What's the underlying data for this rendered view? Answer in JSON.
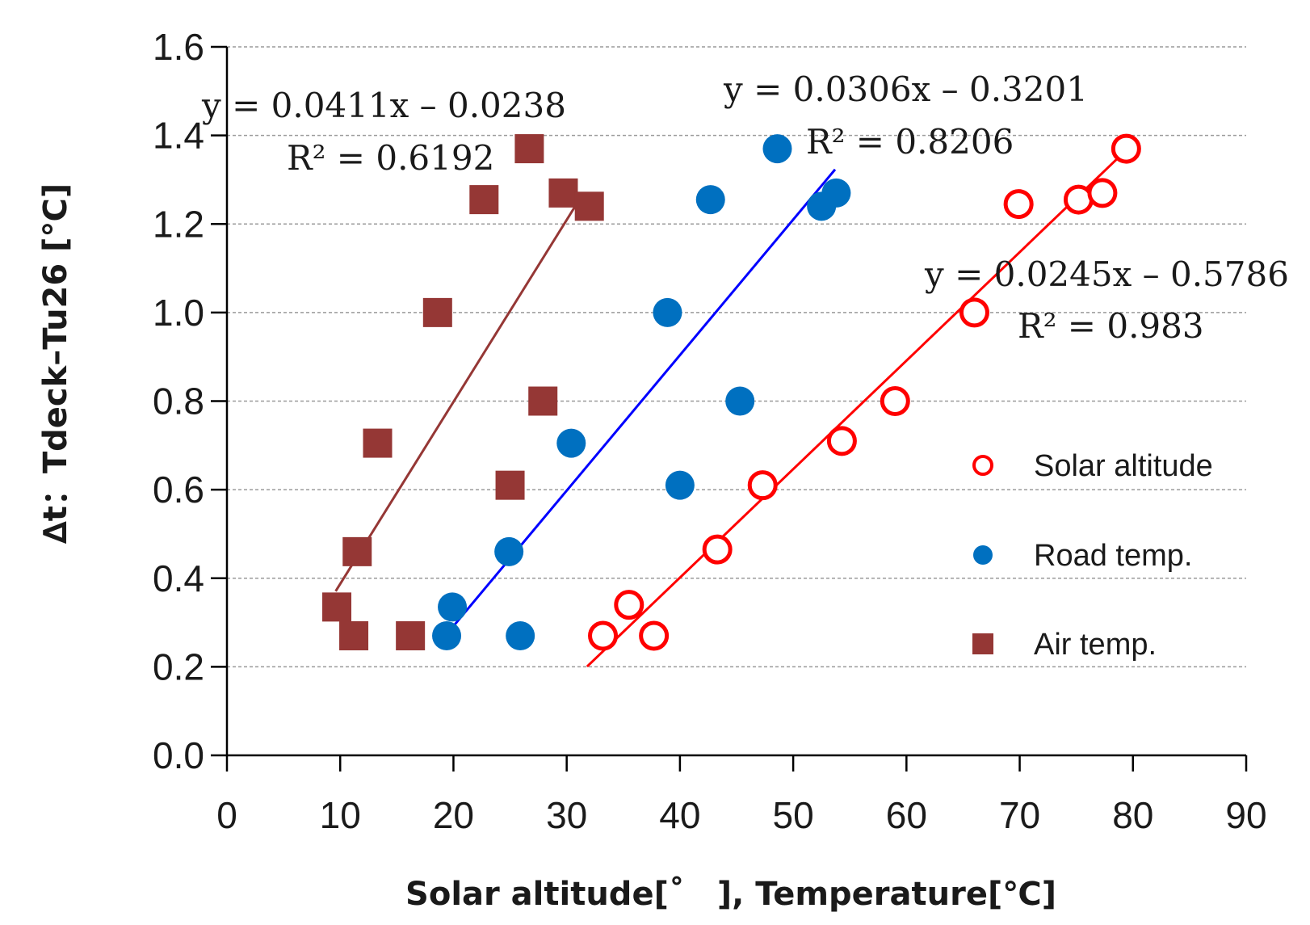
{
  "chart_data": {
    "type": "scatter",
    "title": "",
    "xlabel": "Solar altitude[˚　], Temperature[℃]",
    "ylabel": "∆t：Tdeck–Tu26 [℃]",
    "xlim": [
      0,
      90
    ],
    "ylim": [
      0.0,
      1.6
    ],
    "xticks": [
      0,
      10,
      20,
      30,
      40,
      50,
      60,
      70,
      80,
      90
    ],
    "yticks": [
      "0.0",
      "0.2",
      "0.4",
      "0.6",
      "0.8",
      "1.0",
      "1.2",
      "1.4",
      "1.6"
    ],
    "grid": "horizontal dashed",
    "legend_position": "right",
    "series": [
      {
        "name": "Solar altitude",
        "marker": "open-circle",
        "color": "#ff0000",
        "points": [
          [
            33.2,
            0.27
          ],
          [
            37.7,
            0.27
          ],
          [
            35.5,
            0.34
          ],
          [
            43.3,
            0.465
          ],
          [
            47.3,
            0.61
          ],
          [
            54.3,
            0.71
          ],
          [
            59.0,
            0.8
          ],
          [
            66.0,
            1.0
          ],
          [
            69.9,
            1.245
          ],
          [
            75.2,
            1.255
          ],
          [
            77.3,
            1.27
          ],
          [
            79.4,
            1.37
          ]
        ],
        "fit": {
          "slope": 0.0245,
          "intercept": -0.5786,
          "x_range": [
            31.8,
            79.5
          ],
          "equation": "y = 0.0245x – 0.5786",
          "r2": "R² = 0.983"
        }
      },
      {
        "name": "Road temp.",
        "marker": "filled-circle",
        "color": "#0070c0",
        "points": [
          [
            19.4,
            0.27
          ],
          [
            25.9,
            0.27
          ],
          [
            19.9,
            0.335
          ],
          [
            24.9,
            0.46
          ],
          [
            30.4,
            0.705
          ],
          [
            40.0,
            0.61
          ],
          [
            38.9,
            1.0
          ],
          [
            45.3,
            0.8
          ],
          [
            42.7,
            1.255
          ],
          [
            48.6,
            1.37
          ],
          [
            52.5,
            1.24
          ],
          [
            53.8,
            1.27
          ]
        ],
        "fit": {
          "slope": 0.0306,
          "intercept": -0.3201,
          "x_range": [
            19.3,
            53.7
          ],
          "equation": "y = 0.0306x – 0.3201",
          "r2": "R² = 0.8206"
        }
      },
      {
        "name": "Air temp.",
        "marker": "filled-square",
        "color": "#953735",
        "points": [
          [
            9.7,
            0.335
          ],
          [
            11.2,
            0.27
          ],
          [
            16.2,
            0.27
          ],
          [
            11.5,
            0.46
          ],
          [
            13.3,
            0.705
          ],
          [
            25.0,
            0.61
          ],
          [
            27.9,
            0.8
          ],
          [
            18.6,
            1.0
          ],
          [
            22.7,
            1.255
          ],
          [
            26.7,
            1.37
          ],
          [
            29.7,
            1.27
          ],
          [
            32.0,
            1.24
          ]
        ],
        "fit": {
          "slope": 0.0411,
          "intercept": -0.0238,
          "x_range": [
            9.6,
            31.5
          ],
          "equation": "y = 0.0411x – 0.0238",
          "r2": "R² = 0.6192"
        }
      }
    ]
  }
}
